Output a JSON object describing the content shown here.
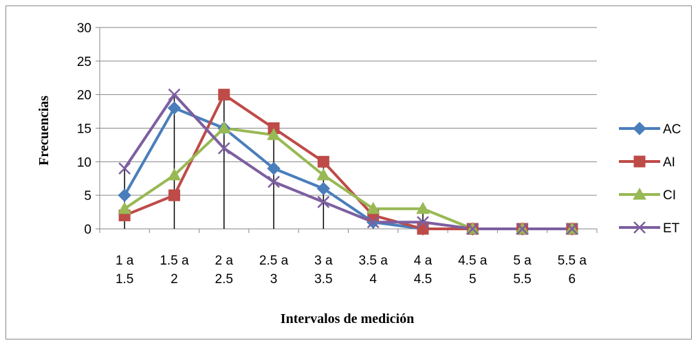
{
  "chart_data": {
    "type": "line",
    "title": "",
    "xlabel": "Intervalos de medición",
    "ylabel": "Frecuencias",
    "ylim": [
      0,
      30
    ],
    "yticks": [
      0,
      5,
      10,
      15,
      20,
      25,
      30
    ],
    "grid": "horizontal",
    "legend_position": "right",
    "categories": [
      [
        "1 a",
        "1.5"
      ],
      [
        "1.5 a",
        "2"
      ],
      [
        "2 a",
        "2.5"
      ],
      [
        "2.5 a",
        "3"
      ],
      [
        "3 a",
        "3.5"
      ],
      [
        "3.5 a",
        "4"
      ],
      [
        "4 a",
        "4.5"
      ],
      [
        "4.5 a",
        "5"
      ],
      [
        "5 a",
        "5.5"
      ],
      [
        "5.5 a",
        "6"
      ]
    ],
    "series": [
      {
        "name": "AC",
        "color": "#4a7ebb",
        "marker": "diamond",
        "values": [
          5,
          18,
          15,
          9,
          6,
          1,
          0,
          0,
          0,
          0
        ]
      },
      {
        "name": "AI",
        "color": "#be4b48",
        "marker": "square",
        "values": [
          2,
          5,
          20,
          15,
          10,
          2,
          0,
          0,
          0,
          0
        ]
      },
      {
        "name": "CI",
        "color": "#98b954",
        "marker": "triangle",
        "values": [
          3,
          8,
          15,
          14,
          8,
          3,
          3,
          0,
          0,
          0
        ]
      },
      {
        "name": "ET",
        "color": "#7d5fa0",
        "marker": "x",
        "values": [
          9,
          20,
          12,
          7,
          4,
          1,
          1,
          0,
          0,
          0
        ]
      }
    ],
    "drop_lines": true
  }
}
